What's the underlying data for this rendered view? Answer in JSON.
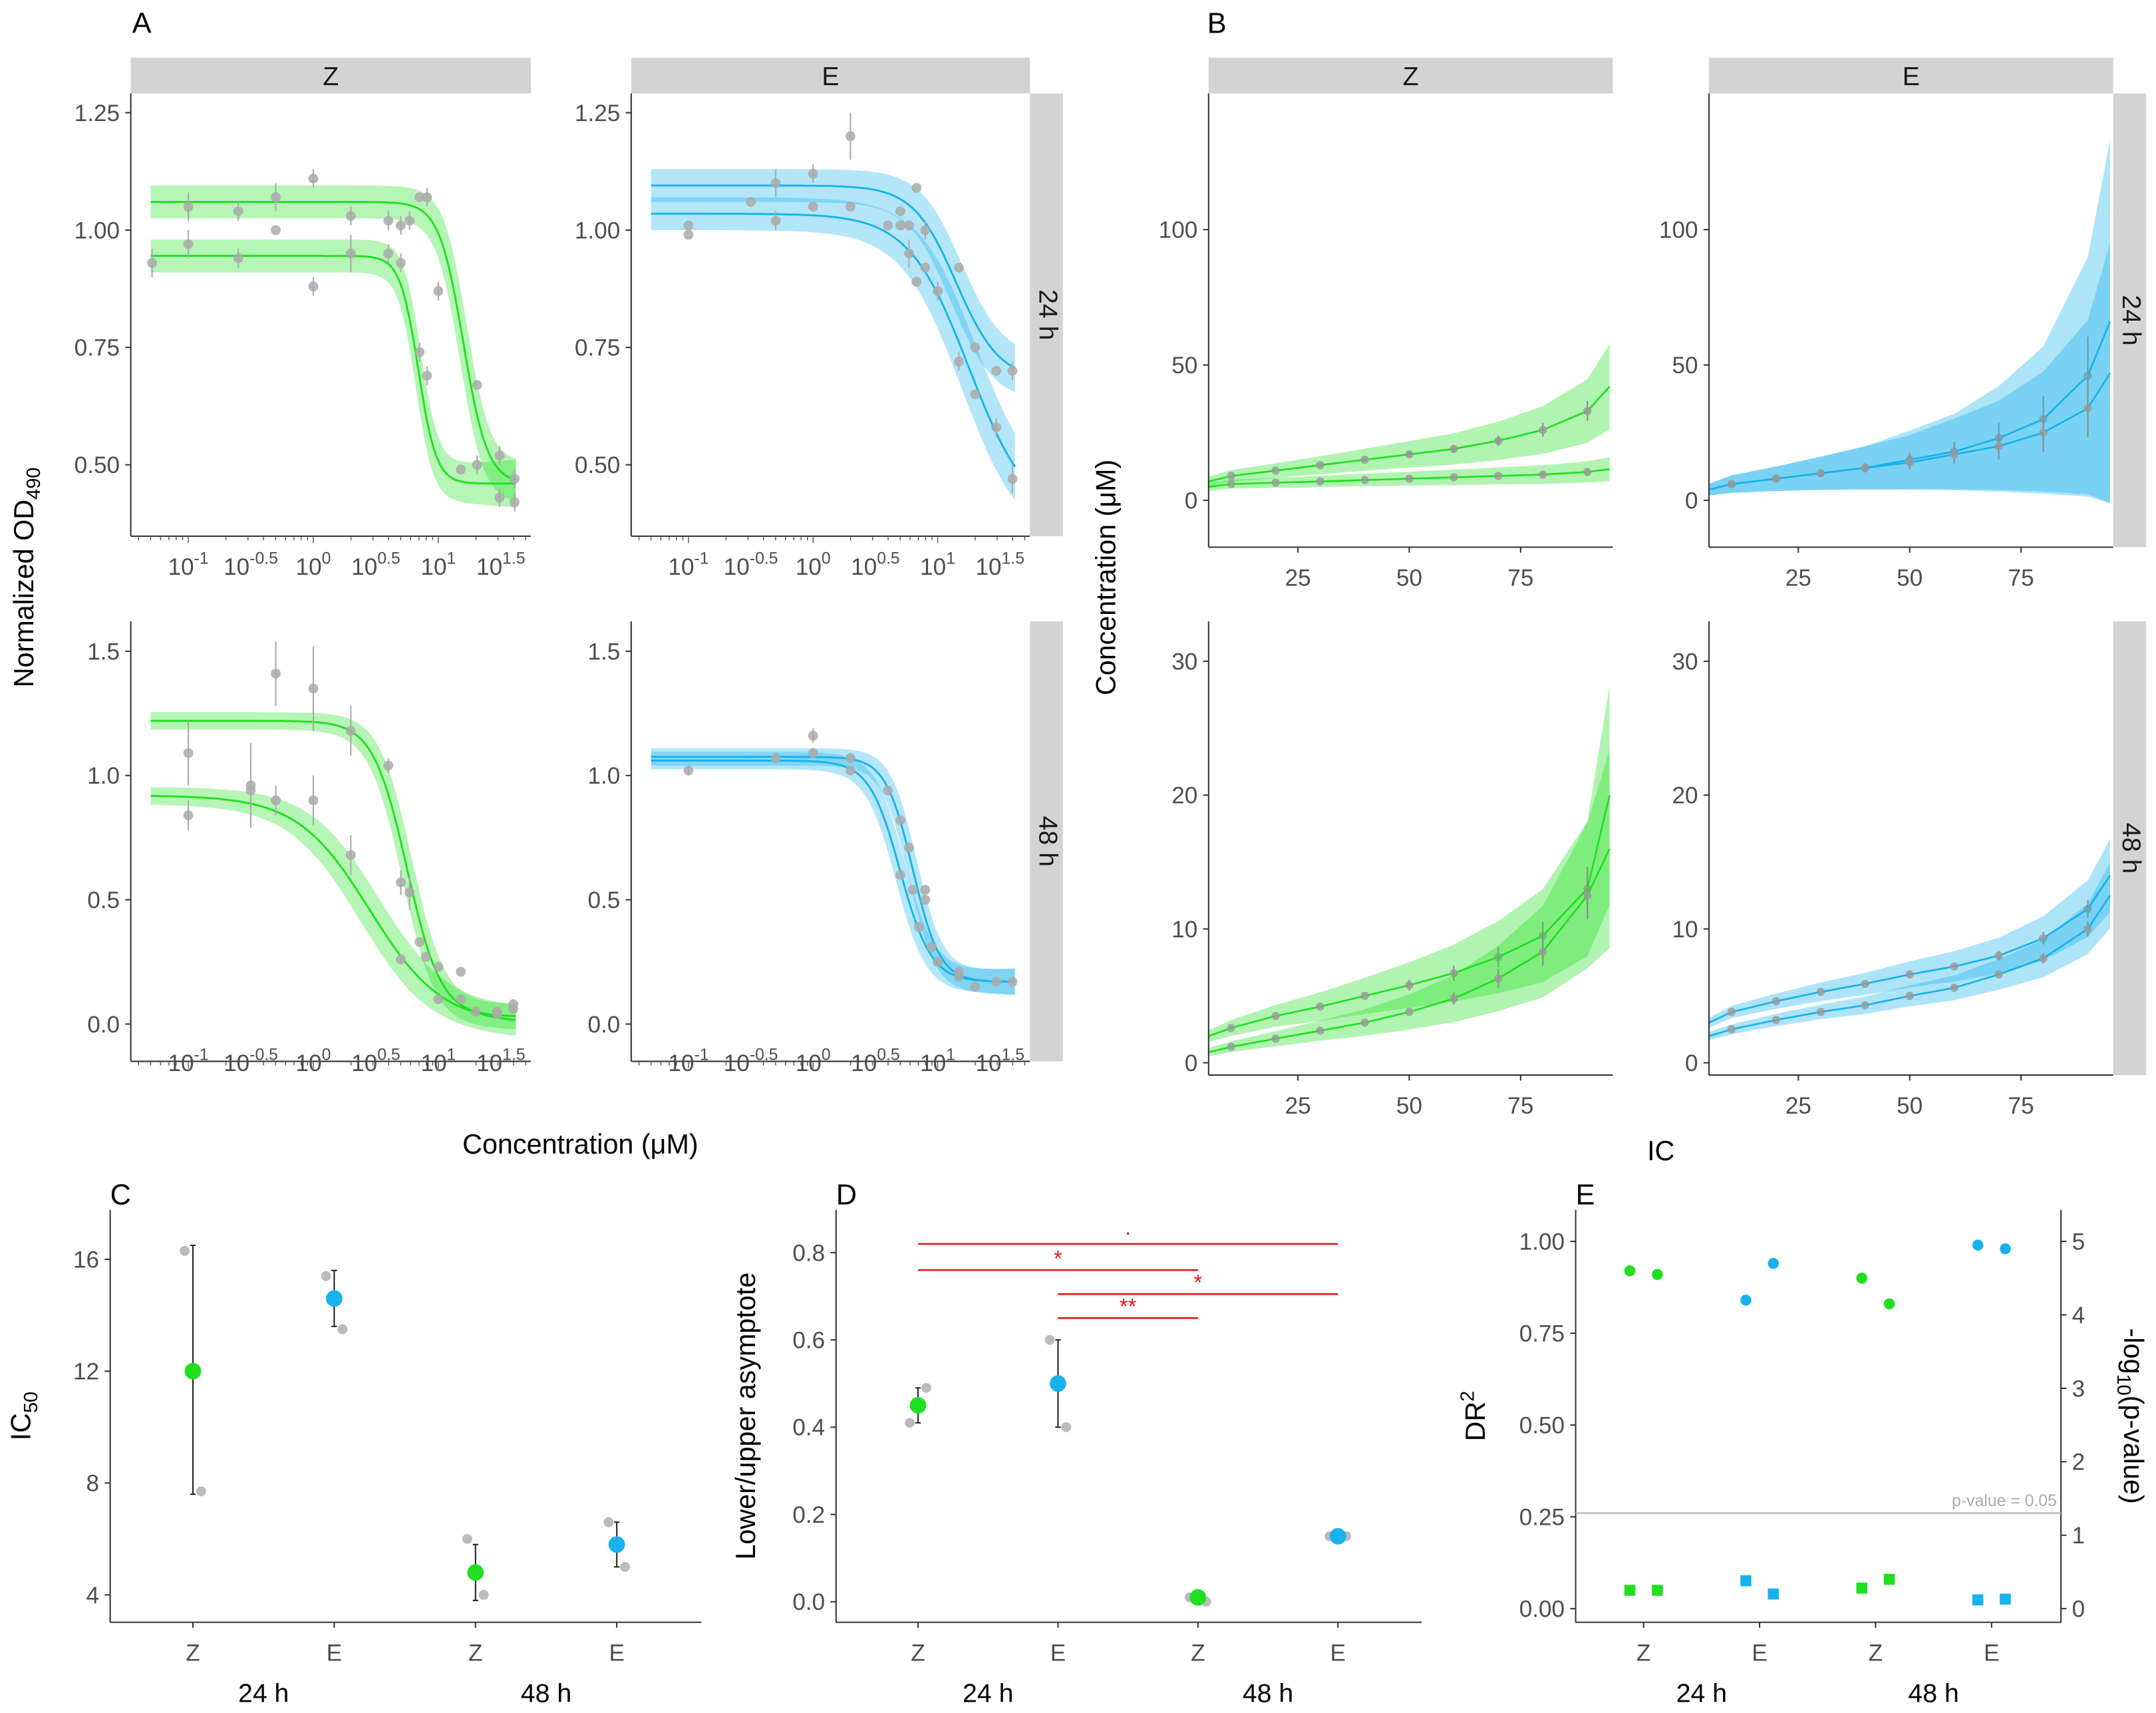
{
  "colors": {
    "Z": "#1fe01f",
    "E": "#18b2ec",
    "point": "#aaaaaa",
    "strip": "#d3d3d3",
    "sig": "#e8191b"
  },
  "labels": {
    "panel_A": "A",
    "panel_B": "B",
    "panel_C": "C",
    "panel_D": "D",
    "panel_E": "E",
    "a_ylabel_main": "Normalized OD",
    "a_ylabel_sub": "490",
    "a_xlabel": "Concentration (μM)",
    "b_ylabel": "Concentration (μM)",
    "b_xlabel": "IC",
    "c_ylabel_main": "IC",
    "c_ylabel_sub": "50",
    "d_ylabel": "Lower/upper asymptote",
    "e_ylabel_main": "DR",
    "e_ylabel_sup": "2",
    "e_y2label_pre": "-log",
    "e_y2label_sub": "10",
    "e_y2label_post": "(p-value)",
    "drugs": [
      "Z",
      "E"
    ],
    "times": [
      "24 h",
      "48 h"
    ]
  },
  "chart_data": [
    {
      "panel": "A",
      "type": "line",
      "xscale": "log10",
      "xticks": [
        {
          "base": "10",
          "exp": "-1",
          "v": -1
        },
        {
          "base": "10",
          "exp": "-0.5",
          "v": -0.5
        },
        {
          "base": "10",
          "exp": "0",
          "v": 0
        },
        {
          "base": "10",
          "exp": "0.5",
          "v": 0.5
        },
        {
          "base": "10",
          "exp": "1",
          "v": 1
        },
        {
          "base": "10",
          "exp": "1.5",
          "v": 1.5
        }
      ],
      "facets": [
        {
          "drug": "Z",
          "time": "24 h",
          "ylim": [
            0.348,
            1.291
          ],
          "yticks": [
            "0.50",
            "0.75",
            "1.00",
            "1.25"
          ],
          "curves": [
            {
              "top": 1.06,
              "bottom": 0.46,
              "logIC50": 1.2,
              "hill": 4.5
            },
            {
              "top": 0.945,
              "bottom": 0.46,
              "logIC50": 0.84,
              "hill": 6
            }
          ],
          "points": [
            [
              -1.29,
              0.93,
              0.03
            ],
            [
              -1,
              1.05,
              0.03
            ],
            [
              -1,
              0.97,
              0.03
            ],
            [
              -0.6,
              1.04,
              0.02
            ],
            [
              -0.6,
              0.94,
              0.02
            ],
            [
              -0.3,
              1.07,
              0.03
            ],
            [
              -0.3,
              1.0,
              0.0
            ],
            [
              0,
              1.11,
              0.02
            ],
            [
              0,
              0.88,
              0.02
            ],
            [
              0.3,
              1.03,
              0.02
            ],
            [
              0.3,
              0.95,
              0.04
            ],
            [
              0.6,
              1.02,
              0.02
            ],
            [
              0.6,
              0.95,
              0.02
            ],
            [
              0.7,
              1.01,
              0.02
            ],
            [
              0.7,
              0.93,
              0.02
            ],
            [
              0.77,
              1.02,
              0.02
            ],
            [
              0.85,
              1.07,
              0.0
            ],
            [
              0.85,
              0.74,
              0.02
            ],
            [
              0.91,
              1.07,
              0.02
            ],
            [
              0.91,
              0.69,
              0.02
            ],
            [
              1.0,
              0.87,
              0.02
            ],
            [
              1.18,
              0.49,
              0.0
            ],
            [
              1.31,
              0.5,
              0.02
            ],
            [
              1.31,
              0.67,
              0.0
            ],
            [
              1.49,
              0.52,
              0.02
            ],
            [
              1.49,
              0.43,
              0.02
            ],
            [
              1.61,
              0.47,
              0.02
            ],
            [
              1.61,
              0.42,
              0.02
            ]
          ]
        },
        {
          "drug": "E",
          "time": "24 h",
          "ylim": [
            0.348,
            1.291
          ],
          "yticks": [
            "0.50",
            "0.75",
            "1.00",
            "1.25"
          ],
          "curves": [
            {
              "top": 1.095,
              "bottom": 0.68,
              "logIC50": 1.15,
              "hill": 2.5
            },
            {
              "top": 1.035,
              "bottom": 0.38,
              "logIC50": 1.25,
              "hill": 1.8
            }
          ],
          "points": [
            [
              -1,
              1.01,
              0.0
            ],
            [
              -1,
              0.99,
              0.0
            ],
            [
              -0.5,
              1.06,
              0.0
            ],
            [
              -0.3,
              1.1,
              0.03
            ],
            [
              -0.3,
              1.02,
              0.02
            ],
            [
              0,
              1.12,
              0.02
            ],
            [
              0,
              1.05,
              0.0
            ],
            [
              0.3,
              1.2,
              0.05
            ],
            [
              0.3,
              1.05,
              0.0
            ],
            [
              0.6,
              1.01,
              0.0
            ],
            [
              0.7,
              1.04,
              0.0
            ],
            [
              0.7,
              1.01,
              0.0
            ],
            [
              0.77,
              1.01,
              0.0
            ],
            [
              0.77,
              0.95,
              0.03
            ],
            [
              0.83,
              1.09,
              0.0
            ],
            [
              0.83,
              0.89,
              0.0
            ],
            [
              0.9,
              1.0,
              0.02
            ],
            [
              0.9,
              0.92,
              0.0
            ],
            [
              1.0,
              0.87,
              0.02
            ],
            [
              1.17,
              0.92,
              0.0
            ],
            [
              1.17,
              0.72,
              0.02
            ],
            [
              1.3,
              0.75,
              0.0
            ],
            [
              1.3,
              0.65,
              0.0
            ],
            [
              1.47,
              0.7,
              0.0
            ],
            [
              1.47,
              0.58,
              0.02
            ],
            [
              1.6,
              0.7,
              0.02
            ],
            [
              1.6,
              0.47,
              0.03
            ]
          ]
        },
        {
          "drug": "Z",
          "time": "48 h",
          "ylim": [
            -0.15,
            1.62
          ],
          "yticks": [
            "0.0",
            "0.5",
            "1.0",
            "1.5"
          ],
          "curves": [
            {
              "top": 1.22,
              "bottom": 0.03,
              "logIC50": 0.75,
              "hill": 3.2
            },
            {
              "top": 0.92,
              "bottom": 0.0,
              "logIC50": 0.45,
              "hill": 1.5
            }
          ],
          "points": [
            [
              -1,
              1.09,
              0.13
            ],
            [
              -1,
              0.84,
              0.06
            ],
            [
              -0.5,
              0.96,
              0.17
            ],
            [
              -0.5,
              0.94,
              0.14
            ],
            [
              -0.3,
              1.41,
              0.13
            ],
            [
              -0.3,
              0.9,
              0.06
            ],
            [
              0,
              1.35,
              0.17
            ],
            [
              0,
              0.9,
              0.1
            ],
            [
              0.3,
              1.18,
              0.1
            ],
            [
              0.3,
              0.68,
              0.08
            ],
            [
              0.6,
              1.04,
              0.03
            ],
            [
              0.7,
              0.57,
              0.05
            ],
            [
              0.7,
              0.26,
              0.02
            ],
            [
              0.77,
              0.53,
              0.07
            ],
            [
              0.85,
              0.33,
              0.0
            ],
            [
              0.9,
              0.27,
              0.0
            ],
            [
              1.0,
              0.23,
              0.0
            ],
            [
              1.0,
              0.1,
              0.0
            ],
            [
              1.18,
              0.21,
              0.0
            ],
            [
              1.18,
              0.1,
              0.0
            ],
            [
              1.3,
              0.05,
              0.0
            ],
            [
              1.47,
              0.05,
              0.0
            ],
            [
              1.47,
              0.04,
              0.0
            ],
            [
              1.6,
              0.08,
              0.0
            ],
            [
              1.6,
              0.06,
              0.0
            ]
          ]
        },
        {
          "drug": "E",
          "time": "48 h",
          "ylim": [
            -0.15,
            1.62
          ],
          "yticks": [
            "0.0",
            "0.5",
            "1.0",
            "1.5"
          ],
          "curves": [
            {
              "top": 1.075,
              "bottom": 0.17,
              "logIC50": 0.8,
              "hill": 4
            },
            {
              "top": 1.06,
              "bottom": 0.17,
              "logIC50": 0.7,
              "hill": 3.5
            }
          ],
          "points": [
            [
              -1,
              1.02,
              0.02
            ],
            [
              -0.3,
              1.07,
              0.02
            ],
            [
              0,
              1.16,
              0.03
            ],
            [
              0,
              1.09,
              0.02
            ],
            [
              0.3,
              1.07,
              0.02
            ],
            [
              0.3,
              1.02,
              0.0
            ],
            [
              0.6,
              0.94,
              0.0
            ],
            [
              0.7,
              0.82,
              0.0
            ],
            [
              0.7,
              0.6,
              0.0
            ],
            [
              0.77,
              0.71,
              0.0
            ],
            [
              0.8,
              0.54,
              0.0
            ],
            [
              0.85,
              0.39,
              0.0
            ],
            [
              0.9,
              0.54,
              0.0
            ],
            [
              0.9,
              0.5,
              0.0
            ],
            [
              0.95,
              0.31,
              0.0
            ],
            [
              1.0,
              0.25,
              0.0
            ],
            [
              1.17,
              0.21,
              0.0
            ],
            [
              1.17,
              0.19,
              0.0
            ],
            [
              1.3,
              0.15,
              0.0
            ],
            [
              1.47,
              0.17,
              0.0
            ],
            [
              1.6,
              0.17,
              0.0
            ]
          ]
        }
      ]
    },
    {
      "panel": "B",
      "type": "line",
      "x": [
        5,
        10,
        20,
        30,
        40,
        50,
        60,
        70,
        80,
        90,
        95
      ],
      "xticks": [
        "25",
        "50",
        "75"
      ],
      "facets": [
        {
          "drug": "Z",
          "time": "24 h",
          "ylim": [
            -17.3,
            150.3
          ],
          "yticks": [
            "0",
            "50",
            "100"
          ],
          "series": [
            {
              "values": [
                7,
                9,
                11,
                13,
                15,
                17,
                19,
                22,
                26,
                33,
                42
              ],
              "ci_rel": 0.35
            },
            {
              "values": [
                5,
                6,
                6.5,
                7,
                7.5,
                8,
                8.5,
                9,
                9.5,
                10.5,
                11.5
              ],
              "ci_rel": 0.3
            }
          ]
        },
        {
          "drug": "E",
          "time": "24 h",
          "ylim": [
            -17.3,
            150.3
          ],
          "yticks": [
            "0",
            "50",
            "100"
          ],
          "series": [
            {
              "values": [
                4,
                6,
                8,
                10,
                12,
                15,
                18,
                23,
                30,
                46,
                66
              ],
              "ci_rel": 1.0
            },
            {
              "values": [
                4,
                6,
                8,
                10,
                12,
                14,
                17,
                20,
                25,
                34,
                47
              ],
              "ci_rel": 1.0
            }
          ]
        },
        {
          "drug": "Z",
          "time": "48 h",
          "ylim": [
            -0.92,
            32.98
          ],
          "yticks": [
            "0",
            "10",
            "20",
            "30"
          ],
          "series": [
            {
              "values": [
                2,
                2.6,
                3.5,
                4.2,
                5,
                5.8,
                6.7,
                7.9,
                9.5,
                13,
                20
              ],
              "ci_rel": 0.4
            },
            {
              "values": [
                0.8,
                1.2,
                1.8,
                2.4,
                3,
                3.8,
                4.8,
                6.3,
                8.3,
                12.5,
                16
              ],
              "ci_rel": 0.45
            }
          ]
        },
        {
          "drug": "E",
          "time": "48 h",
          "ylim": [
            -0.92,
            32.98
          ],
          "yticks": [
            "0",
            "10",
            "20",
            "30"
          ],
          "series": [
            {
              "values": [
                3,
                3.8,
                4.6,
                5.3,
                5.9,
                6.6,
                7.2,
                8.0,
                9.3,
                11.5,
                14
              ],
              "ci_rel": 0.18
            },
            {
              "values": [
                2,
                2.5,
                3.2,
                3.8,
                4.3,
                5,
                5.6,
                6.6,
                7.8,
                10,
                12.5
              ],
              "ci_rel": 0.18
            }
          ]
        }
      ]
    },
    {
      "panel": "C",
      "type": "scatter",
      "ylim": [
        3.02,
        17.77
      ],
      "yticks": [
        "4",
        "8",
        "12",
        "16"
      ],
      "categories": [
        "Z",
        "E",
        "Z",
        "E"
      ],
      "groups": [
        "24 h",
        "48 h"
      ],
      "mean": [
        12.0,
        14.6,
        4.8,
        5.8
      ],
      "lower": [
        7.6,
        13.6,
        3.8,
        5.0
      ],
      "upper": [
        16.5,
        15.6,
        5.8,
        6.6
      ],
      "raw": [
        [
          16.3,
          7.7
        ],
        [
          15.4,
          13.5
        ],
        [
          6.0,
          4.0
        ],
        [
          6.6,
          5.0
        ]
      ]
    },
    {
      "panel": "D",
      "type": "scatter",
      "ylim": [
        -0.047,
        0.898
      ],
      "yticks": [
        "0.0",
        "0.2",
        "0.4",
        "0.6",
        "0.8"
      ],
      "categories": [
        "Z",
        "E",
        "Z",
        "E"
      ],
      "groups": [
        "24 h",
        "48 h"
      ],
      "mean": [
        0.45,
        0.5,
        0.01,
        0.15
      ],
      "lower": [
        0.41,
        0.4,
        0.01,
        0.15
      ],
      "upper": [
        0.49,
        0.6,
        0.01,
        0.15
      ],
      "raw": [
        [
          0.41,
          0.49
        ],
        [
          0.6,
          0.4
        ],
        [
          0.01,
          0.0
        ],
        [
          0.15,
          0.15
        ]
      ],
      "significance": [
        {
          "from": 0,
          "to": 3,
          "y": 0.82,
          "label": "·"
        },
        {
          "from": 0,
          "to": 2,
          "y": 0.76,
          "label": "*"
        },
        {
          "from": 1,
          "to": 3,
          "y": 0.705,
          "label": "*"
        },
        {
          "from": 1,
          "to": 2,
          "y": 0.65,
          "label": "**"
        }
      ]
    },
    {
      "panel": "E",
      "type": "scatter",
      "ylim": [
        -0.037,
        1.086
      ],
      "yticks": [
        "0.00",
        "0.25",
        "0.50",
        "0.75",
        "1.00"
      ],
      "y2ticks": [
        "0",
        "1",
        "2",
        "3",
        "4",
        "5"
      ],
      "y2max": 5,
      "categories": [
        "Z",
        "E",
        "Z",
        "E"
      ],
      "groups": [
        "24 h",
        "48 h"
      ],
      "dr2": [
        [
          0.92,
          0.91
        ],
        [
          0.84,
          0.94
        ],
        [
          0.9,
          0.83
        ],
        [
          0.99,
          0.98
        ]
      ],
      "neg_log10_p": [
        [
          0.25,
          0.25
        ],
        [
          0.38,
          0.2
        ],
        [
          0.28,
          0.4
        ],
        [
          0.12,
          0.13
        ]
      ],
      "threshold": {
        "value": 1.301,
        "label": "p-value = 0.05"
      }
    }
  ]
}
